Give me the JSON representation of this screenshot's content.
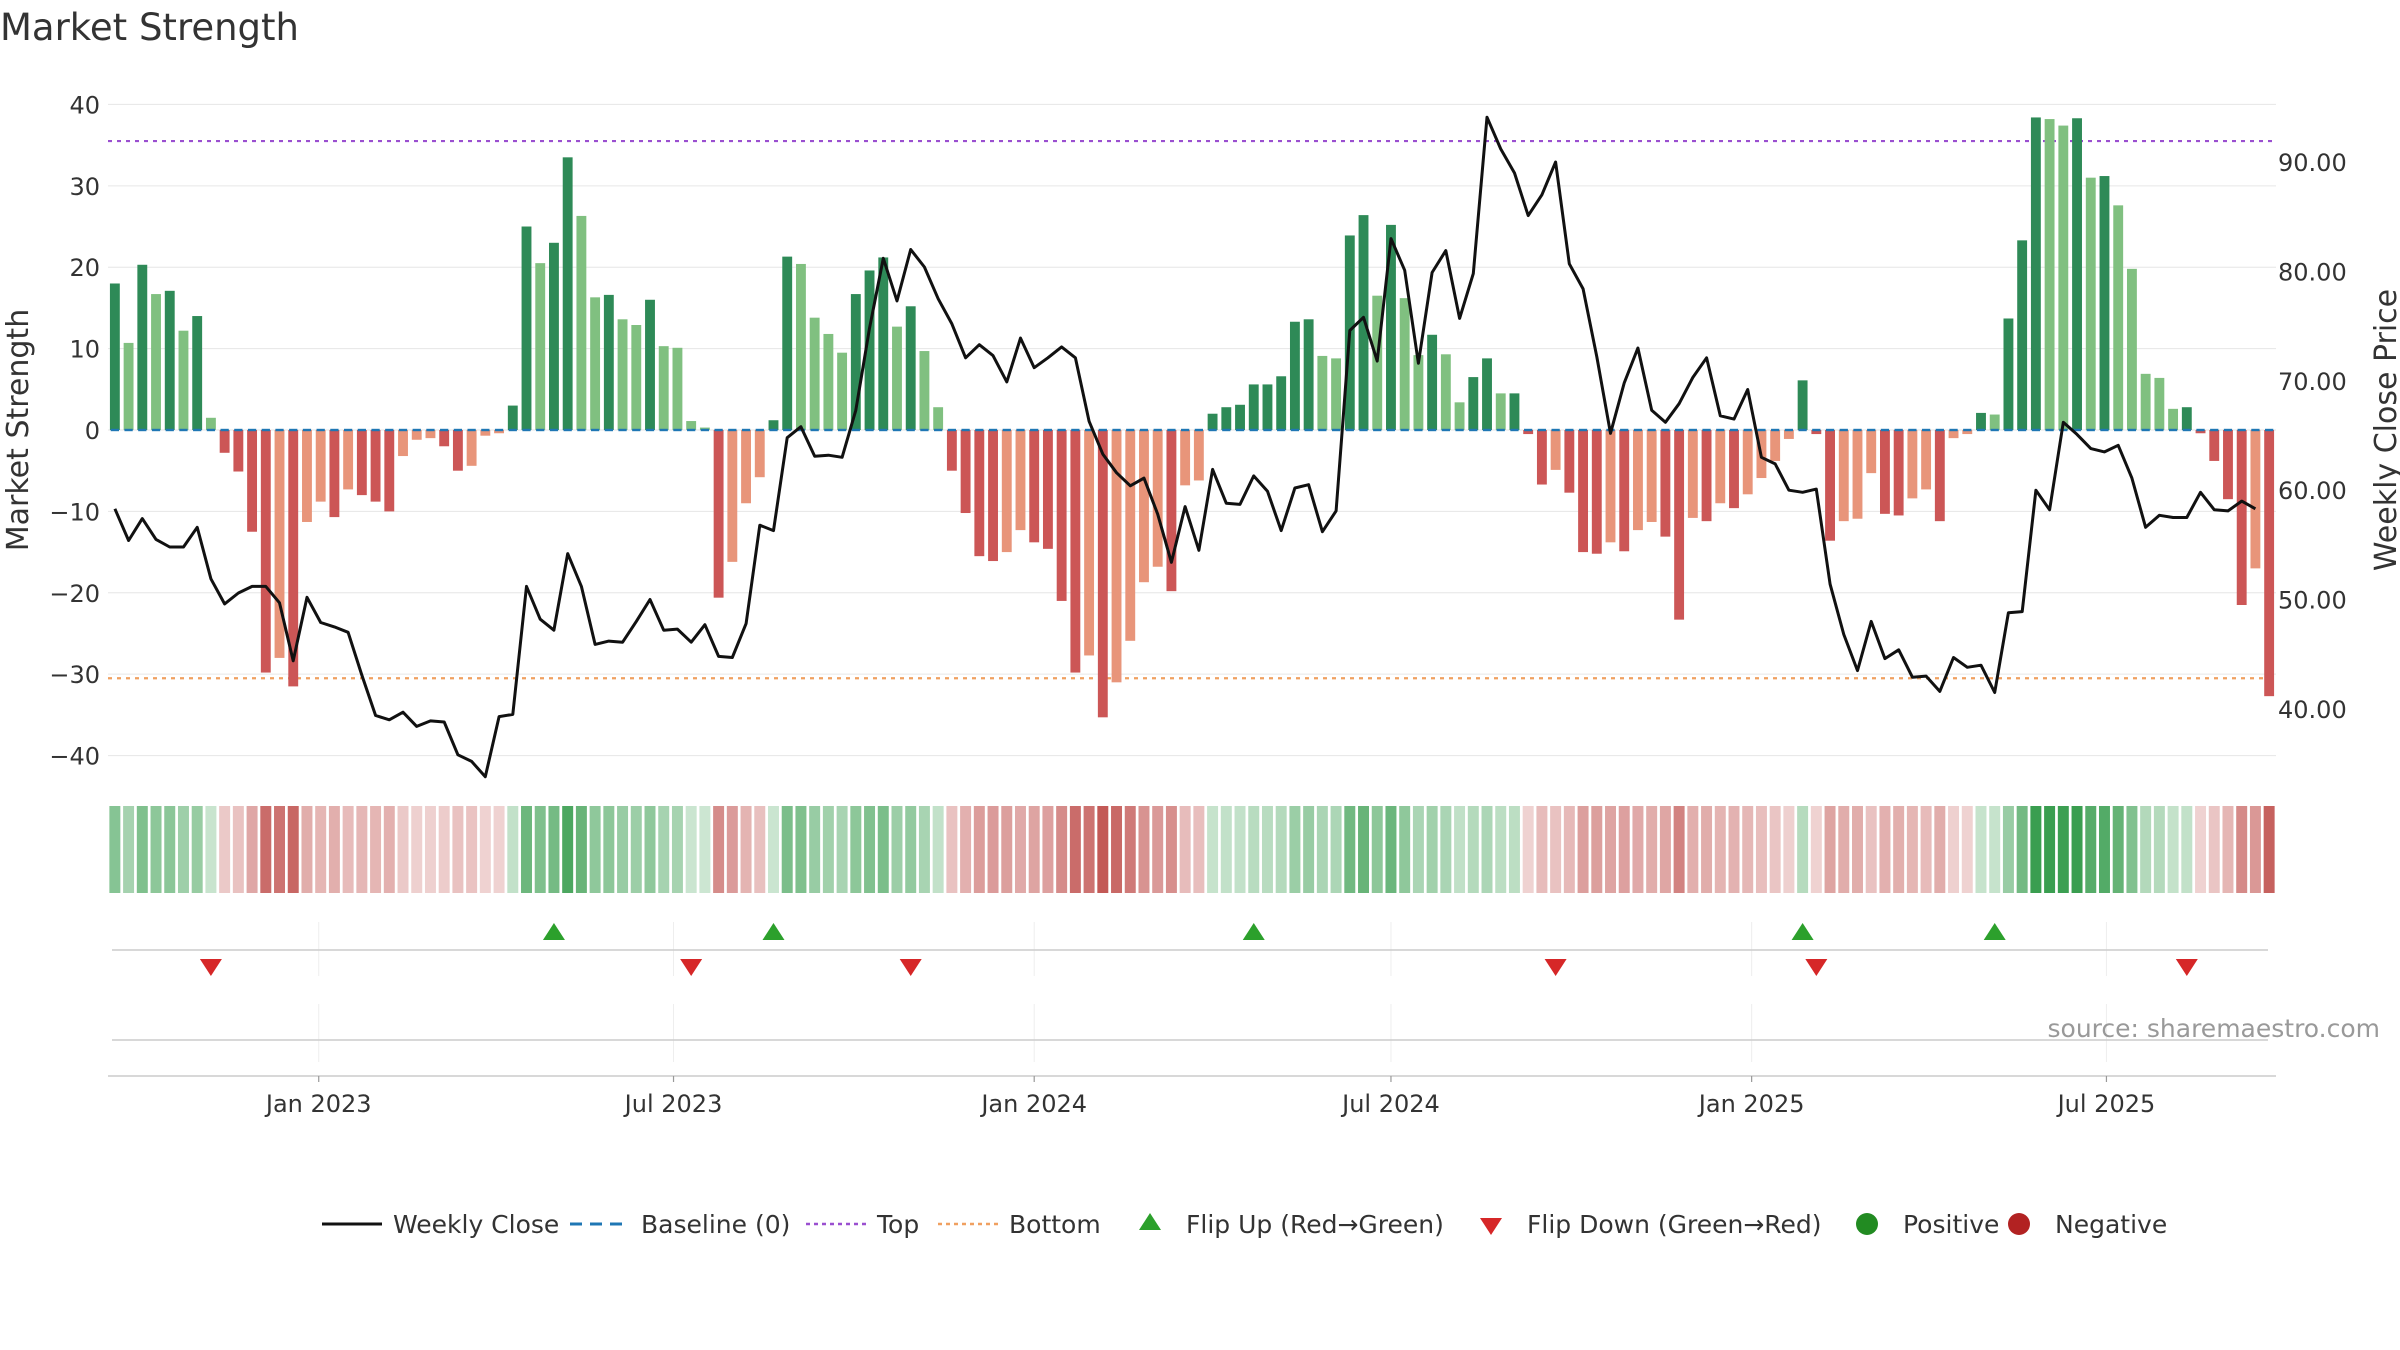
{
  "title": "Market Strength",
  "source": "source: sharemaestro.com",
  "colors": {
    "strong_green": "#2e8a57",
    "light_green": "#80c080",
    "strong_red": "#cc5656",
    "light_red": "#e8957a",
    "line": "#111111",
    "baseline": "#1f77b4",
    "top": "#9a4fd0",
    "bottom": "#f0a060",
    "flip_up": "#2ca02c",
    "flip_down": "#d62728",
    "positive": "#228b22",
    "negative": "#b22222"
  },
  "legend": [
    {
      "label": "Weekly Close",
      "symbol": "line"
    },
    {
      "label": "Baseline (0)",
      "symbol": "dash"
    },
    {
      "label": "Top",
      "symbol": "dot-purple"
    },
    {
      "label": "Bottom",
      "symbol": "dot-orange"
    },
    {
      "label": "Flip Up (Red→Green)",
      "symbol": "tri-up"
    },
    {
      "label": "Flip Down (Green→Red)",
      "symbol": "tri-down"
    },
    {
      "label": "Positive",
      "symbol": "circle-green"
    },
    {
      "label": "Negative",
      "symbol": "circle-red"
    }
  ],
  "chart_data": {
    "type": "bar",
    "title": "Market Strength",
    "ylabel": "Market Strength",
    "y2label": "Weekly Close Price",
    "ylim": [
      -43,
      43
    ],
    "y2lim": [
      33.5,
      97.5
    ],
    "yticks": [
      "−40",
      "−30",
      "−20",
      "−10",
      "0",
      "10",
      "20",
      "30",
      "40"
    ],
    "y2ticks": [
      "40.00",
      "50.00",
      "60.00",
      "70.00",
      "80.00",
      "90.00"
    ],
    "xticks": [
      {
        "label": "Jan 2023",
        "date": "2023-01-01"
      },
      {
        "label": "Jul 2023",
        "date": "2023-07-01"
      },
      {
        "label": "Jan 2024",
        "date": "2024-01-01"
      },
      {
        "label": "Jul 2024",
        "date": "2024-07-01"
      },
      {
        "label": "Jan 2025",
        "date": "2025-01-01"
      },
      {
        "label": "Jul 2025",
        "date": "2025-07-01"
      }
    ],
    "start_date": "2022-09-19",
    "week_step": 7,
    "top_threshold": 35.5,
    "bottom_threshold": -30.5,
    "baseline": 0,
    "strength": [
      18,
      10.7,
      20.3,
      16.7,
      17.1,
      12.2,
      14,
      1.5,
      -2.8,
      -5.1,
      -12.5,
      -29.8,
      -28,
      -31.5,
      -11.3,
      -8.8,
      -10.7,
      -7.3,
      -8,
      -8.8,
      -10,
      -3.2,
      -1.2,
      -1,
      -2,
      -5,
      -4.4,
      -0.7,
      -0.4,
      3,
      25,
      20.5,
      23,
      33.5,
      26.3,
      16.3,
      16.6,
      13.6,
      12.9,
      16,
      10.3,
      10.1,
      1.1,
      0.3,
      -20.6,
      -16.2,
      -9,
      -5.8,
      1.2,
      21.3,
      20.4,
      13.8,
      11.8,
      9.5,
      16.7,
      19.6,
      21.2,
      12.7,
      15.2,
      9.7,
      2.8,
      -5,
      -10.2,
      -15.5,
      -16.1,
      -15,
      -12.3,
      -13.8,
      -14.6,
      -21,
      -29.8,
      -27.7,
      -35.3,
      -31,
      -25.9,
      -18.7,
      -16.8,
      -19.8,
      -6.8,
      -6.2,
      2,
      2.8,
      3.1,
      5.6,
      5.6,
      6.6,
      13.3,
      13.6,
      9.1,
      8.8,
      23.9,
      26.4,
      16.5,
      25.2,
      16.2,
      9.2,
      11.7,
      9.3,
      3.4,
      6.5,
      8.8,
      4.5,
      4.5,
      -0.5,
      -6.7,
      -4.9,
      -7.7,
      -15,
      -15.2,
      -13.8,
      -14.9,
      -12.3,
      -11.3,
      -13.1,
      -23.3,
      -10.8,
      -11.2,
      -9,
      -9.6,
      -7.9,
      -5.9,
      -3.8,
      -1.1,
      6.1,
      -0.5,
      -13.6,
      -11.2,
      -10.9,
      -5.3,
      -10.3,
      -10.5,
      -8.4,
      -7.3,
      -11.2,
      -1,
      -0.5,
      2.1,
      1.9,
      13.7,
      23.3,
      38.4,
      38.2,
      37.4,
      38.3,
      31,
      31.2,
      27.6,
      19.8,
      6.9,
      6.4,
      2.6,
      2.8,
      -0.4,
      -3.8,
      -8.5,
      -21.5,
      -17,
      -32.7
    ],
    "close": [
      58.3,
      55.4,
      57.4,
      55.5,
      54.8,
      54.8,
      56.6,
      51.9,
      49.6,
      50.6,
      51.2,
      51.2,
      49.7,
      44.4,
      50.2,
      47.9,
      47.5,
      47,
      43.1,
      39.4,
      39,
      39.7,
      38.4,
      38.9,
      38.8,
      35.8,
      35.2,
      33.8,
      39.3,
      39.5,
      51.2,
      48.2,
      47.2,
      54.2,
      51.2,
      45.9,
      46.2,
      46.1,
      48,
      50,
      47.2,
      47.3,
      46.1,
      47.7,
      44.8,
      44.7,
      47.8,
      56.8,
      56.3,
      64.8,
      65.8,
      63.1,
      63.2,
      63,
      67.3,
      74.8,
      81.2,
      77.3,
      82,
      80.4,
      77.5,
      75.2,
      72.1,
      73.3,
      72.3,
      69.9,
      73.9,
      71.2,
      72.1,
      73.1,
      72.1,
      66.3,
      63.3,
      61.6,
      60.4,
      61.1,
      57.8,
      53.4,
      58.5,
      54.5,
      61.9,
      58.8,
      58.7,
      61.3,
      59.9,
      56.3,
      60.2,
      60.5,
      56.2,
      58.1,
      74.6,
      75.8,
      71.8,
      83,
      80.1,
      71.6,
      79.9,
      81.9,
      75.7,
      79.8,
      94.1,
      91.2,
      89,
      85.1,
      87,
      90,
      80.7,
      78.4,
      72.2,
      65.2,
      69.8,
      73,
      67.3,
      66.2,
      67.9,
      70.3,
      72.1,
      66.8,
      66.5,
      69.2,
      63,
      62.4,
      60,
      59.8,
      60.1,
      51.4,
      46.8,
      43.5,
      48,
      44.6,
      45.4,
      42.9,
      43,
      41.6,
      44.7,
      43.8,
      44,
      41.5,
      48.8,
      48.9,
      60,
      58.2,
      66.2,
      65.1,
      63.8,
      63.5,
      64.1,
      61.1,
      56.6,
      57.7,
      57.5,
      57.5,
      59.8,
      58.2,
      58.1,
      59,
      58.3
    ],
    "flip_up": [
      "2023-05-01",
      "2023-08-21",
      "2024-04-22",
      "2025-01-27",
      "2025-05-05"
    ],
    "flip_down": [
      "2022-11-07",
      "2023-07-10",
      "2023-10-30",
      "2024-09-23",
      "2025-02-03",
      "2025-08-11"
    ]
  }
}
